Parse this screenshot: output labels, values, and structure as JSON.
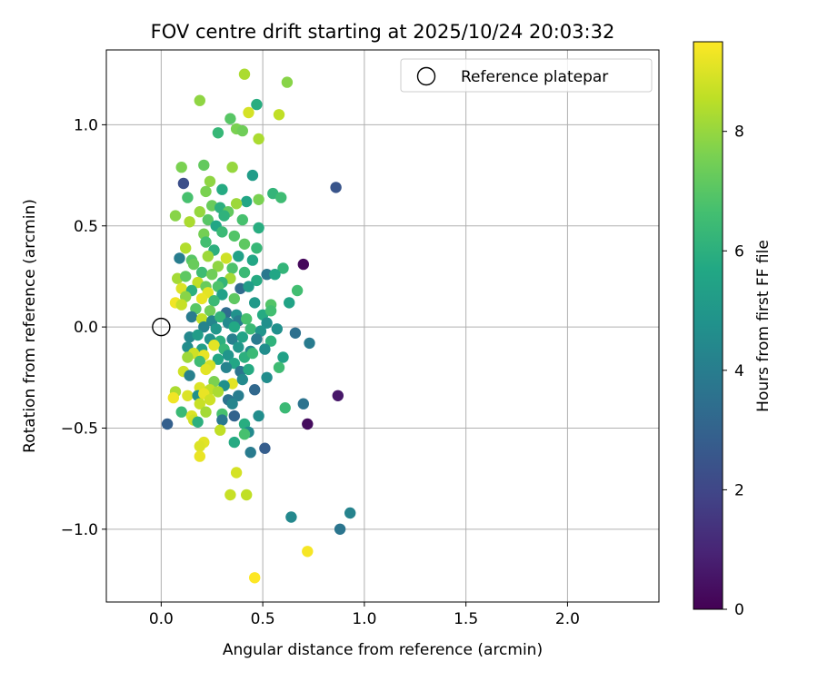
{
  "chart_data": {
    "type": "scatter",
    "title": "FOV centre drift starting at 2025/10/24 20:03:32",
    "xlabel": "Angular distance from reference (arcmin)",
    "ylabel": "Rotation from reference (arcmin)",
    "xlim": [
      -0.27,
      2.45
    ],
    "ylim": [
      -1.36,
      1.37
    ],
    "xticks": [
      0.0,
      0.5,
      1.0,
      1.5,
      2.0
    ],
    "xtick_labels": [
      "0.0",
      "0.5",
      "1.0",
      "1.5",
      "2.0"
    ],
    "yticks": [
      -1.0,
      -0.5,
      0.0,
      0.5,
      1.0
    ],
    "ytick_labels": [
      "−1.0",
      "−0.5",
      "0.0",
      "0.5",
      "1.0"
    ],
    "grid": true,
    "legend": {
      "position": "top-right",
      "entries": [
        "Reference platepar"
      ]
    },
    "reference_point": {
      "x": 0.0,
      "y": 0.0,
      "label": "Reference platepar"
    },
    "colorbar": {
      "label": "Hours from first FF file",
      "range": [
        0,
        9.5
      ],
      "ticks": [
        0,
        2,
        4,
        6,
        8
      ],
      "tick_labels": [
        "0",
        "2",
        "4",
        "6",
        "8"
      ],
      "colormap": "viridis"
    },
    "points_columns": [
      "x",
      "y",
      "hours"
    ],
    "points": [
      [
        0.41,
        1.25,
        8.3
      ],
      [
        0.62,
        1.21,
        7.8
      ],
      [
        0.19,
        1.12,
        7.9
      ],
      [
        0.47,
        1.1,
        5.9
      ],
      [
        0.58,
        1.05,
        8.6
      ],
      [
        0.34,
        1.03,
        7.0
      ],
      [
        0.43,
        1.06,
        8.9
      ],
      [
        0.37,
        0.98,
        7.6
      ],
      [
        0.4,
        0.97,
        7.4
      ],
      [
        0.28,
        0.96,
        6.3
      ],
      [
        0.48,
        0.93,
        8.3
      ],
      [
        0.1,
        0.79,
        7.6
      ],
      [
        0.21,
        0.8,
        7.2
      ],
      [
        0.35,
        0.79,
        8.0
      ],
      [
        0.45,
        0.75,
        5.2
      ],
      [
        0.11,
        0.71,
        2.3
      ],
      [
        0.24,
        0.72,
        7.9
      ],
      [
        0.3,
        0.68,
        5.8
      ],
      [
        0.86,
        0.69,
        2.5
      ],
      [
        0.22,
        0.67,
        7.6
      ],
      [
        0.13,
        0.64,
        6.7
      ],
      [
        0.48,
        0.63,
        7.6
      ],
      [
        0.55,
        0.66,
        6.2
      ],
      [
        0.42,
        0.62,
        5.6
      ],
      [
        0.59,
        0.64,
        6.5
      ],
      [
        0.25,
        0.6,
        7.3
      ],
      [
        0.37,
        0.61,
        8.1
      ],
      [
        0.19,
        0.57,
        8.0
      ],
      [
        0.29,
        0.59,
        6.0
      ],
      [
        0.33,
        0.57,
        7.2
      ],
      [
        0.07,
        0.55,
        7.8
      ],
      [
        0.14,
        0.52,
        8.3
      ],
      [
        0.23,
        0.53,
        7.0
      ],
      [
        0.31,
        0.55,
        6.1
      ],
      [
        0.4,
        0.53,
        6.7
      ],
      [
        0.27,
        0.5,
        5.6
      ],
      [
        0.48,
        0.49,
        5.9
      ],
      [
        0.21,
        0.46,
        7.5
      ],
      [
        0.3,
        0.47,
        6.4
      ],
      [
        0.36,
        0.45,
        6.9
      ],
      [
        0.22,
        0.42,
        6.6
      ],
      [
        0.41,
        0.41,
        7.1
      ],
      [
        0.12,
        0.39,
        8.4
      ],
      [
        0.26,
        0.38,
        6.0
      ],
      [
        0.47,
        0.39,
        6.3
      ],
      [
        0.09,
        0.34,
        4.0
      ],
      [
        0.15,
        0.33,
        7.0
      ],
      [
        0.23,
        0.35,
        8.1
      ],
      [
        0.32,
        0.34,
        8.8
      ],
      [
        0.38,
        0.35,
        5.4
      ],
      [
        0.45,
        0.33,
        5.6
      ],
      [
        0.16,
        0.31,
        7.3
      ],
      [
        0.28,
        0.3,
        7.9
      ],
      [
        0.35,
        0.29,
        6.8
      ],
      [
        0.41,
        0.27,
        6.4
      ],
      [
        0.6,
        0.29,
        6.2
      ],
      [
        0.7,
        0.31,
        0.2
      ],
      [
        0.08,
        0.24,
        8.2
      ],
      [
        0.12,
        0.25,
        7.1
      ],
      [
        0.2,
        0.27,
        6.5
      ],
      [
        0.25,
        0.26,
        7.4
      ],
      [
        0.34,
        0.24,
        8.2
      ],
      [
        0.3,
        0.22,
        6.2
      ],
      [
        0.47,
        0.23,
        5.8
      ],
      [
        0.52,
        0.26,
        3.8
      ],
      [
        0.56,
        0.26,
        5.6
      ],
      [
        0.18,
        0.22,
        8.6
      ],
      [
        0.22,
        0.2,
        7.3
      ],
      [
        0.28,
        0.2,
        6.8
      ],
      [
        0.39,
        0.19,
        3.3
      ],
      [
        0.43,
        0.2,
        5.2
      ],
      [
        0.1,
        0.19,
        9.0
      ],
      [
        0.15,
        0.18,
        6.0
      ],
      [
        0.23,
        0.17,
        9.1
      ],
      [
        0.3,
        0.16,
        5.4
      ],
      [
        0.67,
        0.18,
        6.6
      ],
      [
        0.12,
        0.15,
        7.8
      ],
      [
        0.2,
        0.14,
        9.2
      ],
      [
        0.26,
        0.13,
        6.4
      ],
      [
        0.36,
        0.14,
        7.1
      ],
      [
        0.46,
        0.12,
        5.1
      ],
      [
        0.54,
        0.11,
        6.9
      ],
      [
        0.63,
        0.12,
        5.5
      ],
      [
        0.07,
        0.12,
        9.3
      ],
      [
        0.1,
        0.11,
        8.7
      ],
      [
        0.17,
        0.09,
        7.0
      ],
      [
        0.24,
        0.08,
        7.4
      ],
      [
        0.32,
        0.07,
        3.4
      ],
      [
        0.37,
        0.06,
        4.8
      ],
      [
        0.5,
        0.06,
        5.8
      ],
      [
        0.54,
        0.08,
        6.6
      ],
      [
        0.15,
        0.05,
        3.9
      ],
      [
        0.2,
        0.04,
        8.6
      ],
      [
        0.25,
        0.03,
        4.3
      ],
      [
        0.29,
        0.05,
        6.2
      ],
      [
        0.33,
        0.02,
        4.5
      ],
      [
        0.38,
        0.03,
        4.0
      ],
      [
        0.42,
        0.04,
        6.7
      ],
      [
        0.52,
        0.02,
        4.7
      ],
      [
        0.21,
        0.0,
        4.2
      ],
      [
        0.27,
        -0.01,
        5.0
      ],
      [
        0.36,
        0.0,
        5.7
      ],
      [
        0.44,
        -0.01,
        6.4
      ],
      [
        0.49,
        -0.02,
        4.9
      ],
      [
        0.57,
        -0.01,
        4.7
      ],
      [
        0.66,
        -0.03,
        3.5
      ],
      [
        0.73,
        -0.08,
        3.9
      ],
      [
        0.14,
        -0.05,
        4.4
      ],
      [
        0.18,
        -0.04,
        5.2
      ],
      [
        0.24,
        -0.06,
        4.8
      ],
      [
        0.29,
        -0.07,
        6.0
      ],
      [
        0.35,
        -0.06,
        4.1
      ],
      [
        0.4,
        -0.05,
        5.5
      ],
      [
        0.47,
        -0.06,
        3.9
      ],
      [
        0.54,
        -0.07,
        6.1
      ],
      [
        0.13,
        -0.1,
        4.6
      ],
      [
        0.2,
        -0.11,
        5.3
      ],
      [
        0.26,
        -0.09,
        9.1
      ],
      [
        0.31,
        -0.11,
        6.3
      ],
      [
        0.38,
        -0.1,
        5.0
      ],
      [
        0.44,
        -0.12,
        4.5
      ],
      [
        0.51,
        -0.11,
        4.6
      ],
      [
        0.16,
        -0.13,
        8.8
      ],
      [
        0.21,
        -0.14,
        9.2
      ],
      [
        0.28,
        -0.16,
        5.6
      ],
      [
        0.33,
        -0.14,
        4.9
      ],
      [
        0.41,
        -0.15,
        6.0
      ],
      [
        0.45,
        -0.13,
        6.4
      ],
      [
        0.6,
        -0.15,
        5.4
      ],
      [
        0.13,
        -0.15,
        8.1
      ],
      [
        0.19,
        -0.17,
        6.5
      ],
      [
        0.24,
        -0.19,
        8.9
      ],
      [
        0.36,
        -0.18,
        5.6
      ],
      [
        0.58,
        -0.2,
        6.5
      ],
      [
        0.11,
        -0.22,
        8.8
      ],
      [
        0.22,
        -0.21,
        9.1
      ],
      [
        0.32,
        -0.2,
        4.2
      ],
      [
        0.39,
        -0.22,
        3.7
      ],
      [
        0.43,
        -0.21,
        5.8
      ],
      [
        0.52,
        -0.25,
        4.6
      ],
      [
        0.14,
        -0.24,
        4.1
      ],
      [
        0.26,
        -0.27,
        7.6
      ],
      [
        0.35,
        -0.28,
        9.1
      ],
      [
        0.4,
        -0.26,
        4.5
      ],
      [
        0.19,
        -0.3,
        9.0
      ],
      [
        0.24,
        -0.31,
        8.6
      ],
      [
        0.31,
        -0.29,
        4.7
      ],
      [
        0.46,
        -0.31,
        3.2
      ],
      [
        0.07,
        -0.32,
        8.3
      ],
      [
        0.13,
        -0.34,
        9.0
      ],
      [
        0.18,
        -0.34,
        4.7
      ],
      [
        0.21,
        -0.33,
        9.2
      ],
      [
        0.28,
        -0.32,
        8.3
      ],
      [
        0.38,
        -0.34,
        4.0
      ],
      [
        0.06,
        -0.35,
        9.3
      ],
      [
        0.24,
        -0.36,
        8.8
      ],
      [
        0.33,
        -0.36,
        3.6
      ],
      [
        0.19,
        -0.38,
        8.7
      ],
      [
        0.35,
        -0.38,
        4.3
      ],
      [
        0.61,
        -0.4,
        6.4
      ],
      [
        0.7,
        -0.38,
        3.6
      ],
      [
        0.87,
        -0.34,
        0.6
      ],
      [
        0.1,
        -0.42,
        6.4
      ],
      [
        0.15,
        -0.44,
        9.0
      ],
      [
        0.22,
        -0.42,
        8.2
      ],
      [
        0.3,
        -0.43,
        6.7
      ],
      [
        0.36,
        -0.44,
        3.0
      ],
      [
        0.16,
        -0.46,
        8.8
      ],
      [
        0.18,
        -0.47,
        6.0
      ],
      [
        0.3,
        -0.46,
        3.8
      ],
      [
        0.41,
        -0.48,
        5.9
      ],
      [
        0.48,
        -0.44,
        4.6
      ],
      [
        0.03,
        -0.48,
        2.9
      ],
      [
        0.72,
        -0.48,
        0.3
      ],
      [
        0.29,
        -0.51,
        8.6
      ],
      [
        0.43,
        -0.52,
        4.5
      ],
      [
        0.41,
        -0.53,
        6.7
      ],
      [
        0.21,
        -0.57,
        9.1
      ],
      [
        0.19,
        -0.59,
        9.0
      ],
      [
        0.36,
        -0.57,
        5.8
      ],
      [
        0.51,
        -0.6,
        2.8
      ],
      [
        0.44,
        -0.62,
        3.9
      ],
      [
        0.19,
        -0.64,
        9.2
      ],
      [
        0.37,
        -0.72,
        8.9
      ],
      [
        0.34,
        -0.83,
        8.7
      ],
      [
        0.42,
        -0.83,
        8.6
      ],
      [
        0.64,
        -0.94,
        4.4
      ],
      [
        0.93,
        -0.92,
        4.2
      ],
      [
        0.88,
        -1.0,
        3.7
      ],
      [
        0.72,
        -1.11,
        9.4
      ],
      [
        0.46,
        -1.24,
        9.5
      ]
    ]
  }
}
